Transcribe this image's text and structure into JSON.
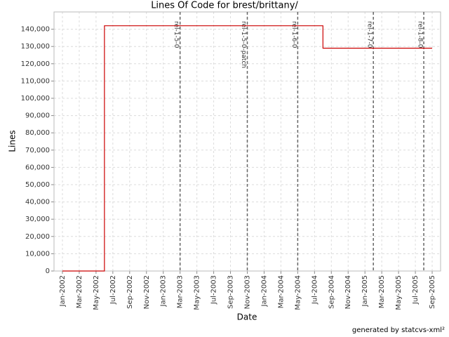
{
  "chart_data": {
    "type": "line",
    "step": true,
    "title": "Lines Of Code for brest/brittany/",
    "x_label": "Date",
    "y_label": "Lines",
    "footer": "generated by statcvs-xml²",
    "x": [
      "2002-01",
      "2002-06",
      "2004-08",
      "2005-09"
    ],
    "series": [
      {
        "color": "#cc0000",
        "values": [
          0,
          142000,
          129000,
          129000
        ]
      }
    ],
    "xlim": [
      "2001-12",
      "2005-10"
    ],
    "ylim": [
      0,
      150000
    ],
    "yticks": [
      0,
      {
        "value": 10000,
        "label": "10,000"
      },
      {
        "value": 20000,
        "label": "20,000"
      },
      {
        "value": 30000,
        "label": "30,000"
      },
      {
        "value": 40000,
        "label": "40,000"
      },
      {
        "value": 50000,
        "label": "50,000"
      },
      {
        "value": 60000,
        "label": "60,000"
      },
      {
        "value": 70000,
        "label": "70,000"
      },
      {
        "value": 80000,
        "label": "80,000"
      },
      {
        "value": 90000,
        "label": "90,000"
      },
      {
        "value": 100000,
        "label": "100,000"
      },
      {
        "value": 110000,
        "label": "110,000"
      },
      {
        "value": 120000,
        "label": "120,000"
      },
      {
        "value": 130000,
        "label": "130,000"
      },
      {
        "value": 140000,
        "label": "140,000"
      }
    ],
    "xticks": [
      {
        "value": "2002-01",
        "label": "Jan-2002"
      },
      {
        "value": "2002-03",
        "label": "Mar-2002"
      },
      {
        "value": "2002-05",
        "label": "May-2002"
      },
      {
        "value": "2002-07",
        "label": "Jul-2002"
      },
      {
        "value": "2002-09",
        "label": "Sep-2002"
      },
      {
        "value": "2002-11",
        "label": "Nov-2002"
      },
      {
        "value": "2003-01",
        "label": "Jan-2003"
      },
      {
        "value": "2003-03",
        "label": "Mar-2003"
      },
      {
        "value": "2003-05",
        "label": "May-2003"
      },
      {
        "value": "2003-07",
        "label": "Jul-2003"
      },
      {
        "value": "2003-09",
        "label": "Sep-2003"
      },
      {
        "value": "2003-11",
        "label": "Nov-2003"
      },
      {
        "value": "2004-01",
        "label": "Jan-2004"
      },
      {
        "value": "2004-03",
        "label": "Mar-2004"
      },
      {
        "value": "2004-05",
        "label": "May-2004"
      },
      {
        "value": "2004-07",
        "label": "Jul-2004"
      },
      {
        "value": "2004-09",
        "label": "Sep-2004"
      },
      {
        "value": "2004-11",
        "label": "Nov-2004"
      },
      {
        "value": "2005-01",
        "label": "Jan-2005"
      },
      {
        "value": "2005-03",
        "label": "Mar-2005"
      },
      {
        "value": "2005-05",
        "label": "May-2005"
      },
      {
        "value": "2005-07",
        "label": "Jul-2005"
      },
      {
        "value": "2005-09",
        "label": "Sep-2005"
      }
    ],
    "markers": [
      {
        "label": "rel-1-5-0",
        "x": "2003-03"
      },
      {
        "label": "rel-1-5-0-patch",
        "x": "2003-11"
      },
      {
        "label": "rel-1-6-0",
        "x": "2004-05"
      },
      {
        "label": "rel-1-7-0",
        "x": "2005-02"
      },
      {
        "label": "rel-1-8-0",
        "x": "2005-08"
      }
    ],
    "grid": true
  }
}
